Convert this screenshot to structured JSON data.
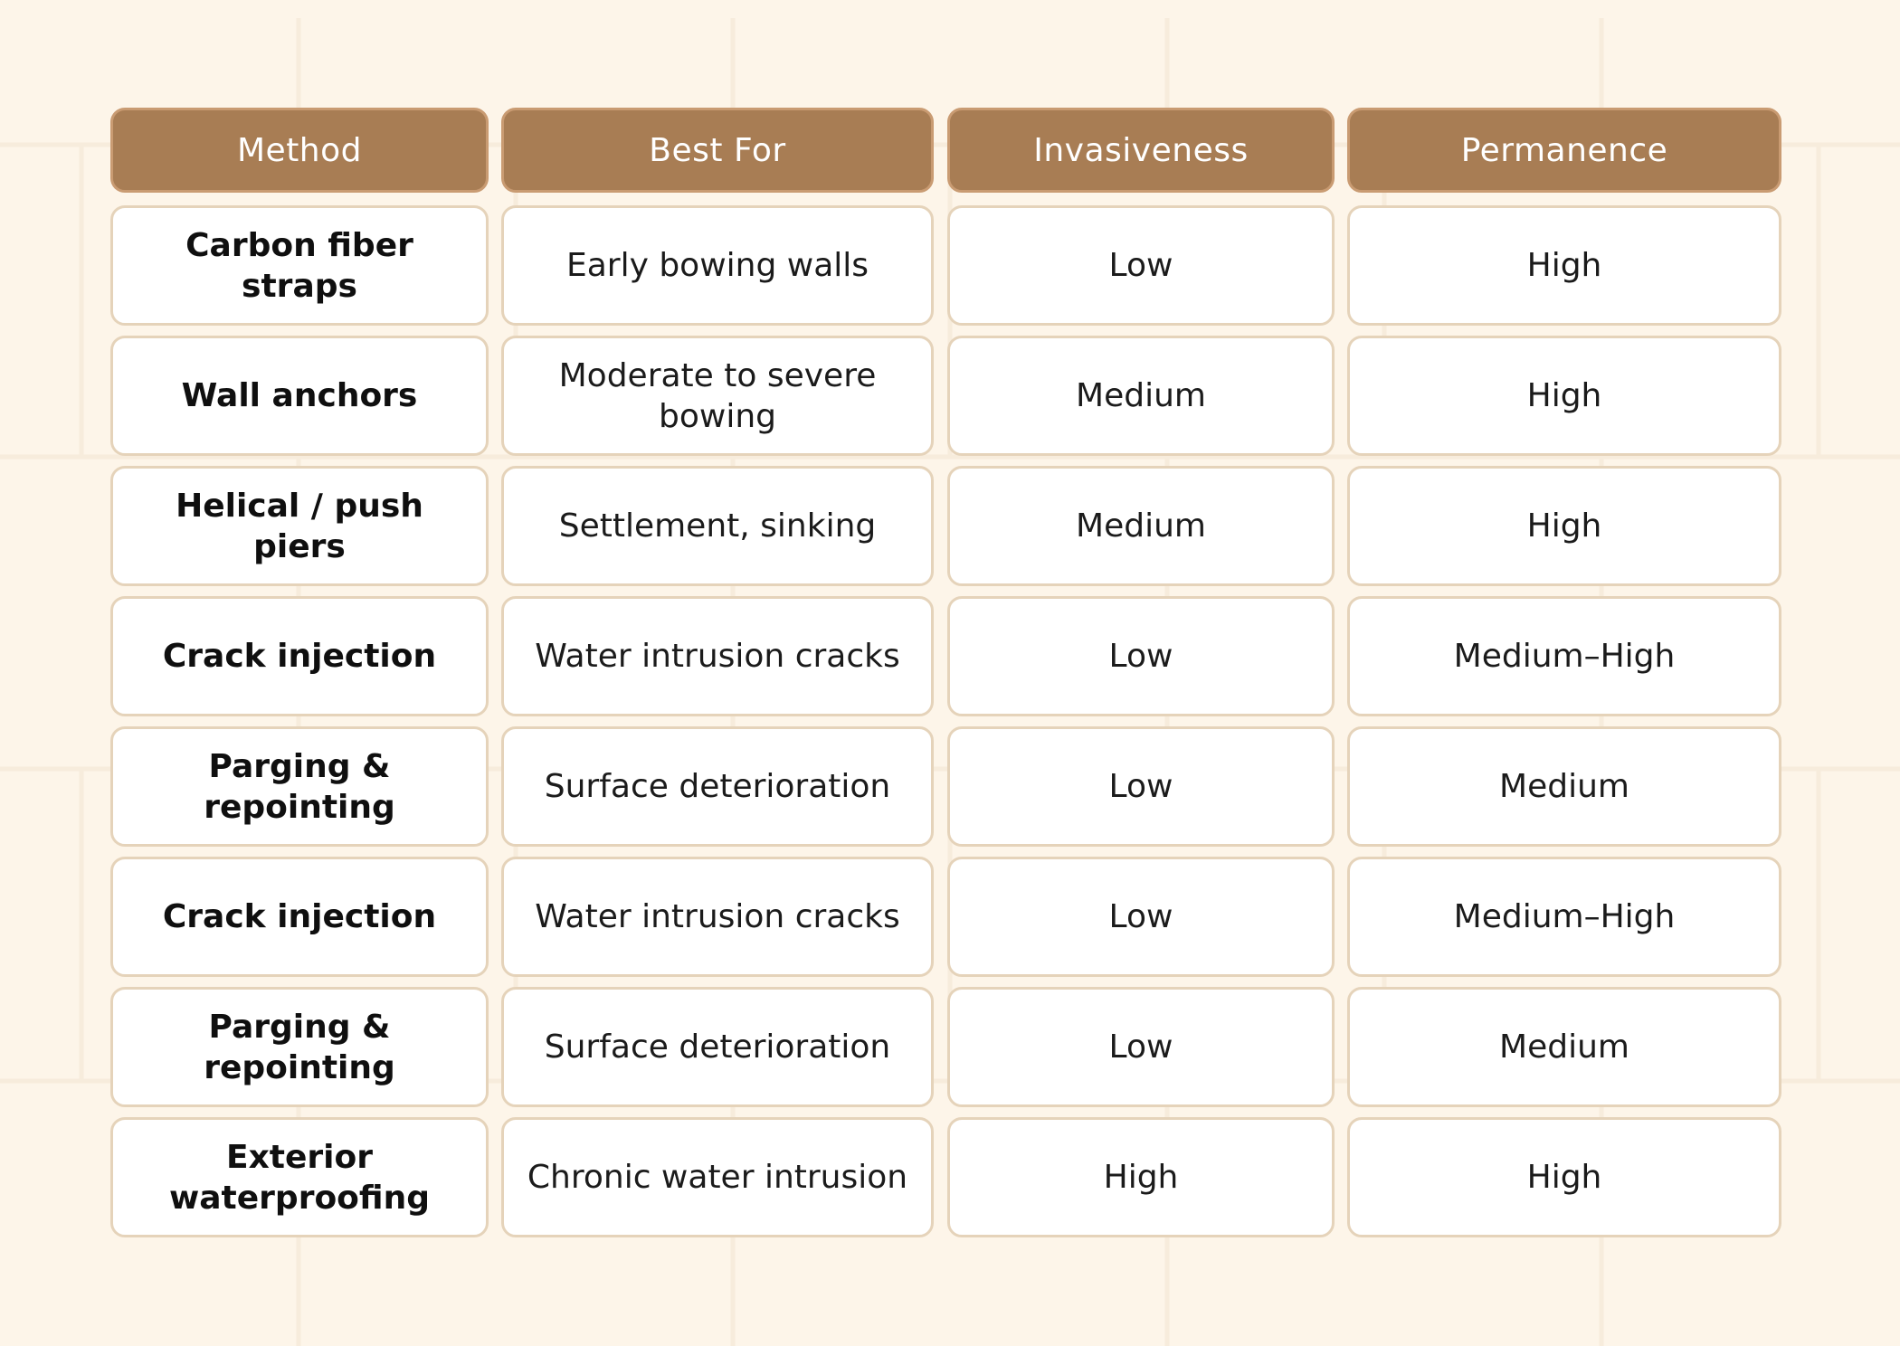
{
  "table": {
    "headers": [
      "Method",
      "Best For",
      "Invasiveness",
      "Permanence"
    ],
    "rows": [
      [
        "Carbon fiber straps",
        "Early bowing walls",
        "Low",
        "High"
      ],
      [
        "Wall anchors",
        "Moderate to severe bowing",
        "Medium",
        "High"
      ],
      [
        "Helical / push piers",
        "Settlement, sinking",
        "Medium",
        "High"
      ],
      [
        "Crack injection",
        "Water intrusion cracks",
        "Low",
        "Medium–High"
      ],
      [
        "Parging & repointing",
        "Surface deterioration",
        "Low",
        "Medium"
      ],
      [
        "Crack injection",
        "Water intrusion cracks",
        "Low",
        "Medium–High"
      ],
      [
        "Parging & repointing",
        "Surface deterioration",
        "Low",
        "Medium"
      ],
      [
        "Exterior waterproofing",
        "Chronic water intrusion",
        "High",
        "High"
      ]
    ]
  },
  "colors": {
    "background": "#fdf5e9",
    "header_fill": "#a87d54",
    "header_border": "#c99b72",
    "cell_border": "#e5d3ba",
    "cell_fill": "#ffffff"
  }
}
